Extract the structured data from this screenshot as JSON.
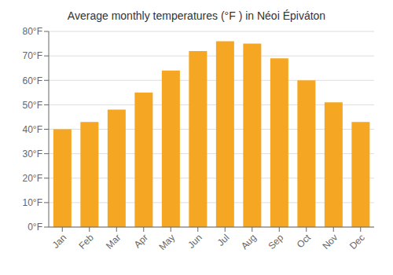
{
  "chart_data": {
    "type": "bar",
    "title": "Average monthly temperatures (°F ) in Néoi Épiváton",
    "categories": [
      "Jan",
      "Feb",
      "Mar",
      "Apr",
      "May",
      "Jun",
      "Jul",
      "Aug",
      "Sep",
      "Oct",
      "Nov",
      "Dec"
    ],
    "values": [
      40,
      43,
      48,
      55,
      64,
      72,
      76,
      75,
      69,
      60,
      51,
      43
    ],
    "color": "#F5A623",
    "ylim": [
      0,
      80
    ],
    "yticks": [
      {
        "value": 0,
        "label": "0°F"
      },
      {
        "value": 10,
        "label": "10°F"
      },
      {
        "value": 20,
        "label": "20°F"
      },
      {
        "value": 30,
        "label": "30°F"
      },
      {
        "value": 40,
        "label": "40°F"
      },
      {
        "value": 50,
        "label": "50°F"
      },
      {
        "value": 60,
        "label": "60°F"
      },
      {
        "value": 70,
        "label": "70°F"
      },
      {
        "value": 80,
        "label": "80°F"
      }
    ],
    "grid": true
  }
}
